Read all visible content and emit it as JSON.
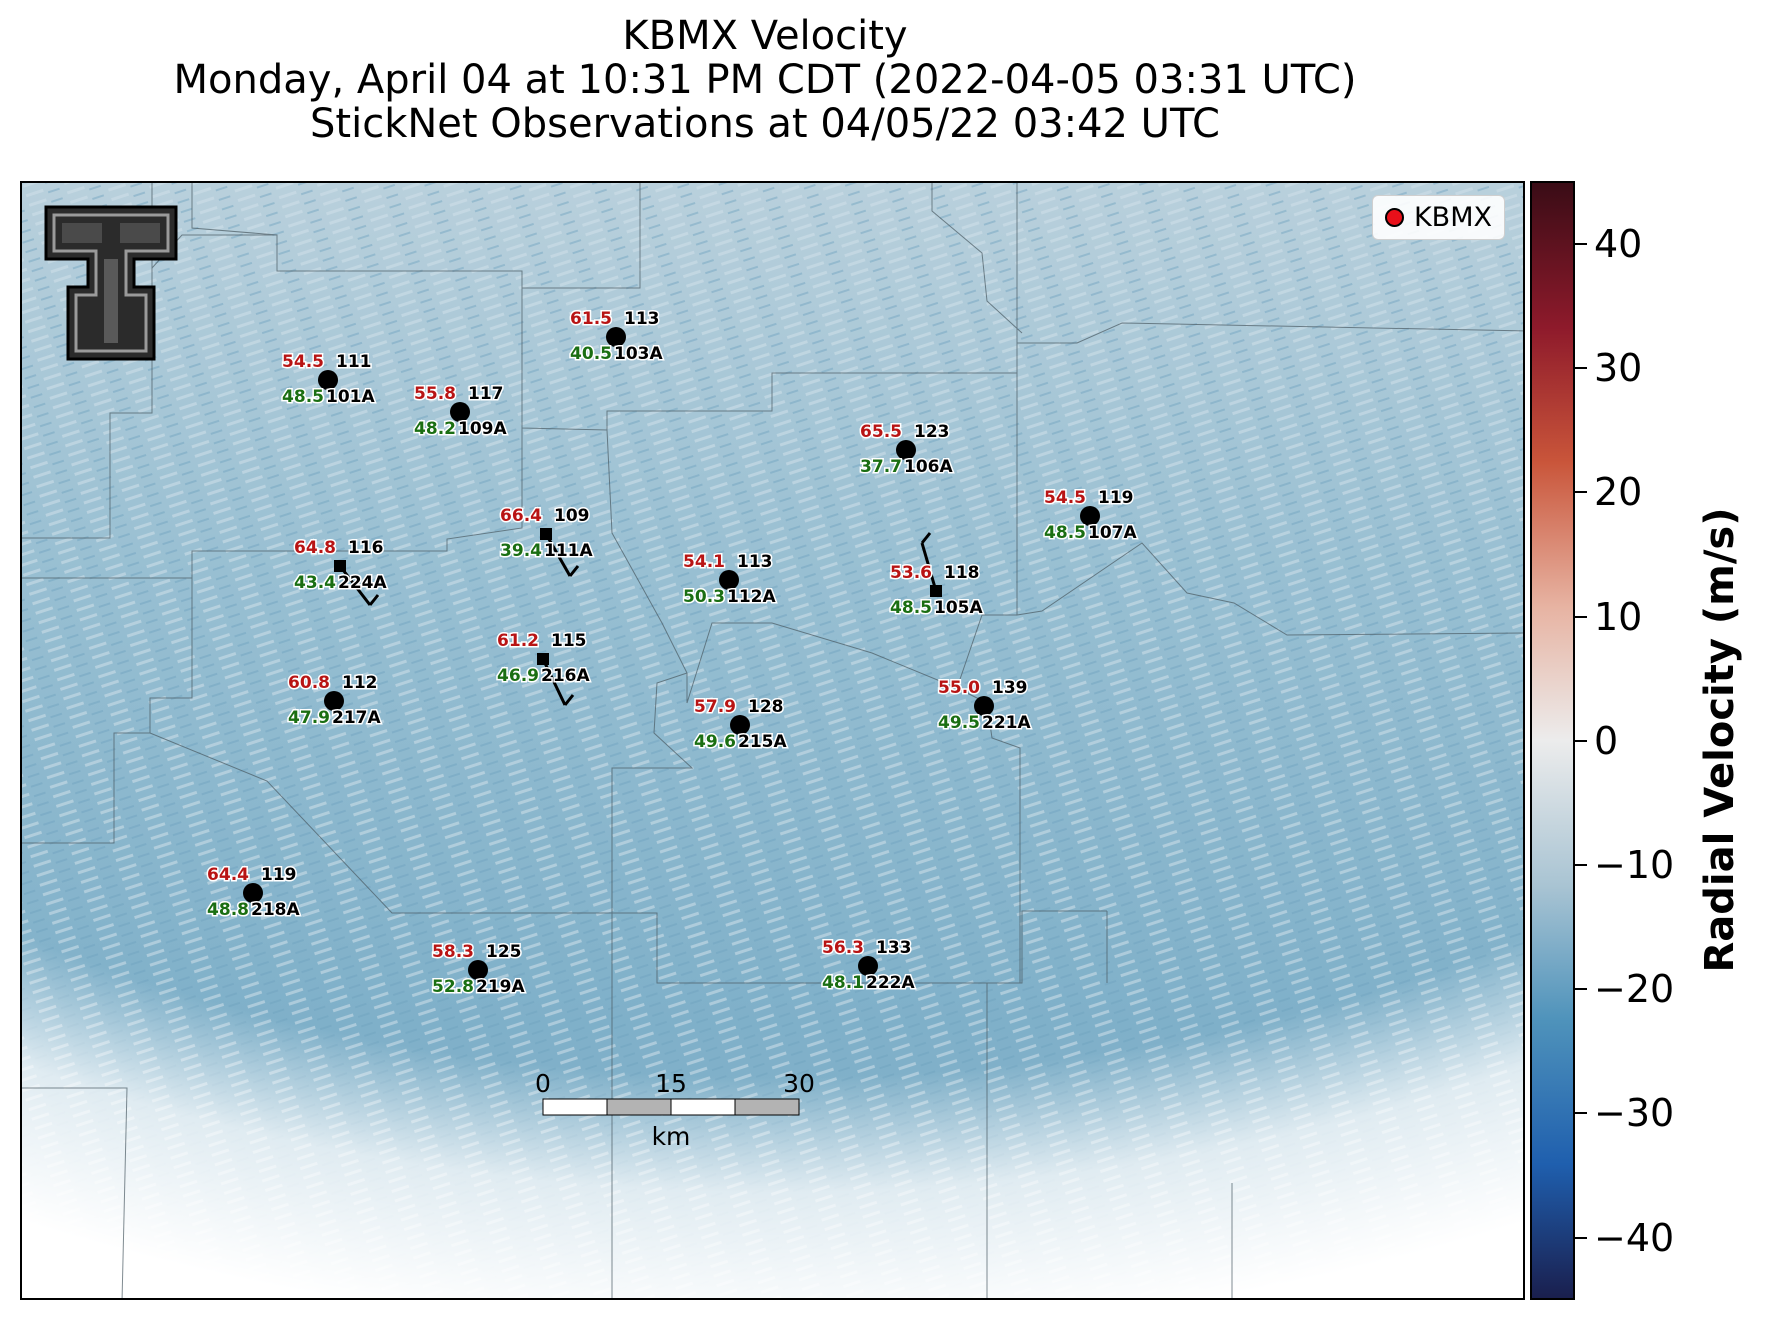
{
  "title": {
    "line1": "KBMX Velocity",
    "line2": "Monday, April 04 at 10:31 PM CDT (2022-04-05 03:31 UTC)",
    "line3": "StickNet Observations at 04/05/22 03:42 UTC"
  },
  "legend": {
    "label": "KBMX",
    "marker_color": "#e8101a"
  },
  "colorbar": {
    "label": "Radial Velocity (m/s)",
    "ticks": [
      "40",
      "30",
      "20",
      "10",
      "0",
      "−10",
      "−20",
      "−30",
      "−40"
    ],
    "colors": [
      "#3a0c16",
      "#8e1a2b",
      "#c9553a",
      "#e7b3a2",
      "#ececec",
      "#a9c4d3",
      "#4f93bb",
      "#1f5fae",
      "#1a1f4e"
    ]
  },
  "scale_bar": {
    "ticks": [
      "0",
      "15",
      "30"
    ],
    "unit": "km"
  },
  "stations": [
    {
      "id": "113",
      "name": "103A",
      "red": "61.5",
      "green": "40.5",
      "marker": "circle"
    },
    {
      "id": "111",
      "name": "101A",
      "red": "54.5",
      "green": "48.5",
      "marker": "circle"
    },
    {
      "id": "117",
      "name": "109A",
      "red": "55.8",
      "green": "48.2",
      "marker": "circle"
    },
    {
      "id": "123",
      "name": "106A",
      "red": "65.5",
      "green": "37.7",
      "marker": "circle"
    },
    {
      "id": "119",
      "name": "107A",
      "red": "54.5",
      "green": "48.5",
      "marker": "circle"
    },
    {
      "id": "109",
      "name": "111A",
      "red": "66.4",
      "green": "39.4",
      "marker": "square"
    },
    {
      "id": "116",
      "name": "224A",
      "red": "64.8",
      "green": "43.4",
      "marker": "square"
    },
    {
      "id": "113",
      "name": "112A",
      "red": "54.1",
      "green": "50.3",
      "marker": "circle"
    },
    {
      "id": "118",
      "name": "105A",
      "red": "53.6",
      "green": "48.5",
      "marker": "square"
    },
    {
      "id": "115",
      "name": "216A",
      "red": "61.2",
      "green": "46.9",
      "marker": "square"
    },
    {
      "id": "112",
      "name": "217A",
      "red": "60.8",
      "green": "47.9",
      "marker": "circle"
    },
    {
      "id": "128",
      "name": "215A",
      "red": "57.9",
      "green": "49.6",
      "marker": "circle"
    },
    {
      "id": "139",
      "name": "221A",
      "red": "55.0",
      "green": "49.5",
      "marker": "circle"
    },
    {
      "id": "119",
      "name": "218A",
      "red": "64.4",
      "green": "48.8",
      "marker": "circle"
    },
    {
      "id": "125",
      "name": "219A",
      "red": "58.3",
      "green": "52.8",
      "marker": "circle"
    },
    {
      "id": "133",
      "name": "222A",
      "red": "56.3",
      "green": "48.1",
      "marker": "circle"
    }
  ]
}
